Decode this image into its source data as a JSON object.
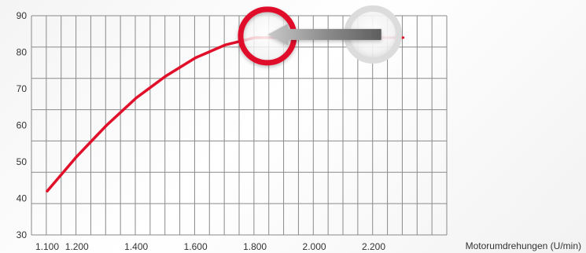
{
  "chart_data": {
    "type": "line",
    "title": "",
    "xlabel": "Motorumdrehungen (U/min)",
    "ylabel": "",
    "xlim": [
      1100,
      2300
    ],
    "ylim": [
      30,
      90
    ],
    "x_ticks": [
      1100,
      1200,
      1400,
      1600,
      1800,
      2000,
      2200
    ],
    "x_tick_labels": [
      "1.100",
      "1.200",
      "1.400",
      "1.600",
      "1.800",
      "2.000",
      "2.200"
    ],
    "y_ticks": [
      30,
      40,
      50,
      60,
      70,
      80,
      90
    ],
    "y_tick_labels": [
      "30",
      "40",
      "50",
      "60",
      "70",
      "80",
      "90"
    ],
    "grid": true,
    "series": [
      {
        "color": "#e0102a",
        "x": [
          1100,
          1200,
          1300,
          1400,
          1500,
          1600,
          1700,
          1800,
          1850
        ],
        "y": [
          42,
          51.5,
          60,
          67.5,
          73.5,
          78.5,
          82,
          84,
          84
        ]
      },
      {
        "color": "#e0102a",
        "x": [
          1850,
          2000,
          2100,
          2200,
          2300
        ],
        "y": [
          84,
          84,
          84,
          84,
          84
        ]
      }
    ],
    "annotations": [
      {
        "type": "highlight-circle",
        "x": 1850,
        "y": 84,
        "color": "#e0102a"
      },
      {
        "type": "highlight-circle",
        "x": 2200,
        "y": 84,
        "color": "#dcdcdc"
      },
      {
        "type": "arrow",
        "from": [
          2210,
          84
        ],
        "to": [
          1870,
          84
        ],
        "color": "#8c8c8c"
      }
    ]
  }
}
